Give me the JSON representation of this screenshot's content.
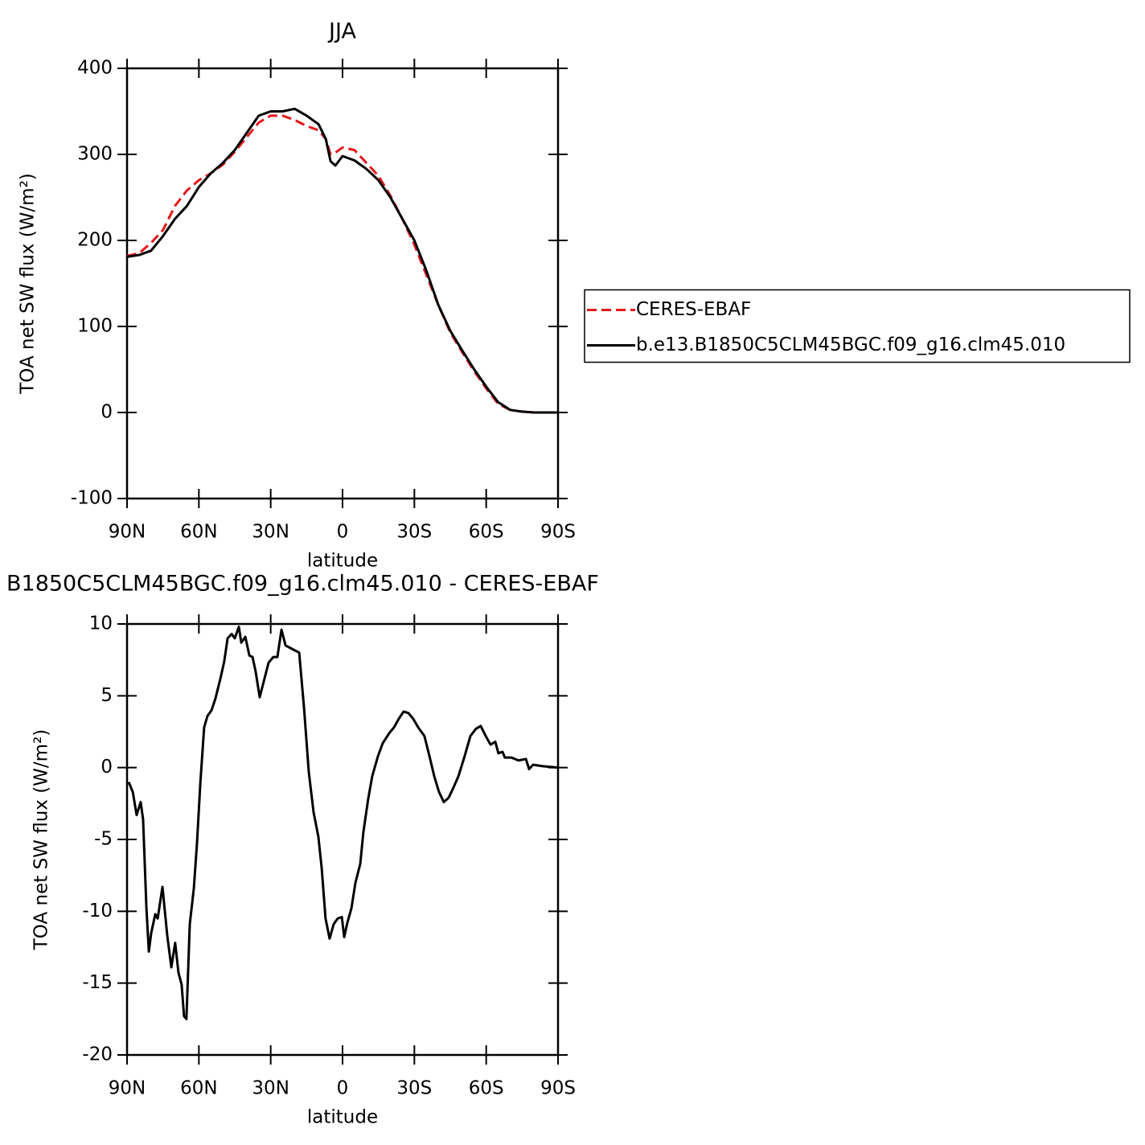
{
  "chart_data": [
    {
      "type": "line",
      "title": "JJA",
      "x_label": "latitude",
      "y_label": "TOA net SW flux (W/m²)",
      "xlim": [
        90,
        -90
      ],
      "ylim": [
        -100,
        400
      ],
      "xticks": [
        {
          "value": 90,
          "label": "90N"
        },
        {
          "value": 60,
          "label": "60N"
        },
        {
          "value": 30,
          "label": "30N"
        },
        0,
        {
          "value": -30,
          "label": "30S"
        },
        {
          "value": -60,
          "label": "60S"
        },
        {
          "value": -90,
          "label": "90S"
        }
      ],
      "yticks": [
        -100,
        0,
        100,
        200,
        300,
        400
      ],
      "legend": "right",
      "x": [
        90,
        85,
        80,
        75,
        70,
        65,
        60,
        55,
        50,
        45,
        40,
        35,
        30,
        25,
        20,
        15,
        10,
        7,
        5,
        3,
        0,
        -5,
        -10,
        -15,
        -20,
        -25,
        -30,
        -35,
        -40,
        -45,
        -50,
        -55,
        -60,
        -65,
        -70,
        -75,
        -80,
        -85,
        -90
      ],
      "series": [
        {
          "name": "CERES-EBAF",
          "color": "#e41a1c",
          "linestyle": "dashed",
          "values": [
            182,
            185,
            197,
            212,
            240,
            258,
            270,
            278,
            288,
            303,
            320,
            337,
            345,
            345,
            340,
            333,
            328,
            318,
            300,
            302,
            308,
            305,
            290,
            275,
            252,
            225,
            195,
            160,
            125,
            93,
            70,
            48,
            28,
            10,
            3,
            1,
            0,
            0,
            0
          ]
        },
        {
          "name": "b.e13.B1850C5CLM45BGC.f09_g16.clm45.010",
          "color": "#000000",
          "linestyle": "solid",
          "values": [
            181,
            183,
            188,
            205,
            225,
            240,
            262,
            278,
            290,
            305,
            325,
            345,
            350,
            350,
            353,
            345,
            335,
            318,
            292,
            287,
            298,
            293,
            283,
            270,
            250,
            225,
            200,
            165,
            125,
            95,
            72,
            50,
            30,
            12,
            3,
            1,
            0,
            0,
            0
          ]
        }
      ]
    },
    {
      "type": "line",
      "title": "B1850C5CLM45BGC.f09_g16.clm45.010 - CERES-EBAF",
      "x_label": "latitude",
      "y_label": "TOA net SW flux (W/m²)",
      "xlim": [
        90,
        -90
      ],
      "ylim": [
        -20,
        10
      ],
      "xticks": [
        {
          "value": 90,
          "label": "90N"
        },
        {
          "value": 60,
          "label": "60N"
        },
        {
          "value": 30,
          "label": "30N"
        },
        0,
        {
          "value": -30,
          "label": "30S"
        },
        {
          "value": -60,
          "label": "60S"
        },
        {
          "value": -90,
          "label": "90S"
        }
      ],
      "yticks": [
        -20,
        -15,
        -10,
        -5,
        0,
        5,
        10
      ],
      "x": [
        89.3,
        87.6,
        86.0,
        84.3,
        83.3,
        81.9,
        80.9,
        79.9,
        78.2,
        77.2,
        75.2,
        73.2,
        71.5,
        69.9,
        68.5,
        67.2,
        66.2,
        65.2,
        63.8,
        62.1,
        60.8,
        59.4,
        57.8,
        56.4,
        54.7,
        53.1,
        51.0,
        49.4,
        48.0,
        46.3,
        45.0,
        43.3,
        42.3,
        40.6,
        38.9,
        37.6,
        36.3,
        34.6,
        32.9,
        30.9,
        28.9,
        27.2,
        25.5,
        23.8,
        21.5,
        18.1,
        16.1,
        14.1,
        12.1,
        10.1,
        8.7,
        7.1,
        5.4,
        3.7,
        2.0,
        0.3,
        -0.7,
        -2.0,
        -3.7,
        -5.4,
        -7.4,
        -8.7,
        -10.7,
        -12.4,
        -14.8,
        -16.8,
        -19.5,
        -21.5,
        -23.5,
        -25.5,
        -27.5,
        -29.5,
        -31.6,
        -34.2,
        -36.3,
        -38.3,
        -40.3,
        -42.3,
        -44.3,
        -46.3,
        -48.4,
        -51.0,
        -53.4,
        -55.7,
        -57.7,
        -59.8,
        -61.8,
        -63.8,
        -65.1,
        -66.8,
        -67.8,
        -70.5,
        -73.5,
        -76.6,
        -77.9,
        -79.6,
        -83.6,
        -90
      ],
      "series": [
        {
          "color": "#000000",
          "linestyle": "solid",
          "values": [
            -1.0,
            -1.7,
            -3.3,
            -2.4,
            -3.6,
            -9.8,
            -12.8,
            -11.5,
            -10.2,
            -10.5,
            -8.3,
            -11.7,
            -13.9,
            -12.2,
            -14.3,
            -15.1,
            -17.3,
            -17.5,
            -10.9,
            -8.4,
            -5.3,
            -1.1,
            2.8,
            3.6,
            4.0,
            4.8,
            6.2,
            7.4,
            9.0,
            9.3,
            9.0,
            9.8,
            8.7,
            9.1,
            7.8,
            7.7,
            6.7,
            4.9,
            6.0,
            7.3,
            7.7,
            7.7,
            9.6,
            8.5,
            8.3,
            8.0,
            4.2,
            -0.3,
            -3.1,
            -4.8,
            -7.0,
            -10.5,
            -11.9,
            -10.9,
            -10.5,
            -10.4,
            -11.8,
            -10.8,
            -9.8,
            -8.0,
            -6.7,
            -4.5,
            -2.2,
            -0.6,
            0.8,
            1.7,
            2.4,
            2.8,
            3.4,
            3.9,
            3.8,
            3.4,
            2.8,
            2.2,
            0.8,
            -0.6,
            -1.7,
            -2.4,
            -2.1,
            -1.4,
            -0.6,
            0.8,
            2.2,
            2.7,
            2.9,
            2.2,
            1.6,
            1.8,
            1.0,
            1.1,
            0.7,
            0.7,
            0.5,
            0.6,
            -0.1,
            0.2,
            0.1,
            0.0
          ]
        }
      ]
    }
  ]
}
